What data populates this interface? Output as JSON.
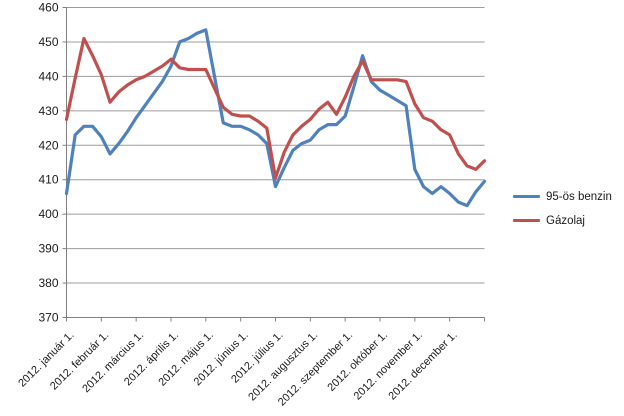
{
  "chart_data": {
    "type": "line",
    "categories": [
      "2012. január 1.",
      "2012. február 1.",
      "2012. március 1.",
      "2012. április 1.",
      "2012. május 1.",
      "2012. június 1.",
      "2012. július 1.",
      "2012. augusztus 1.",
      "2012. szeptember 1.",
      "2012. október 1.",
      "2012. november 1.",
      "2012. december 1."
    ],
    "label_every_n_points": 4,
    "series": [
      {
        "name": "95-ös benzin",
        "color": "#4F81BD",
        "values": [
          406,
          423,
          425.5,
          425.5,
          422.5,
          417.5,
          420.5,
          424,
          428,
          431.5,
          435,
          438.5,
          443,
          450,
          451,
          452.5,
          453.5,
          440,
          426.5,
          425.5,
          425.5,
          424.5,
          423,
          420.5,
          408,
          413.5,
          418.5,
          420.5,
          421.5,
          424.5,
          426,
          426,
          428.5,
          437,
          446,
          438.5,
          436,
          434.5,
          433,
          431.5,
          413,
          408,
          406,
          408,
          406,
          403.5,
          402.5,
          406.5,
          409.5
        ]
      },
      {
        "name": "Gázolaj",
        "color": "#C0504D",
        "values": [
          427.5,
          439.5,
          451,
          446,
          440.5,
          432.5,
          435.5,
          437.5,
          439,
          440,
          441.5,
          443,
          445,
          442.5,
          442,
          442,
          442,
          436.5,
          431,
          429,
          428.5,
          428.5,
          427,
          425,
          410.5,
          418,
          423,
          425.5,
          427.5,
          430.5,
          432.5,
          429,
          434,
          440,
          444.5,
          439,
          439,
          439,
          439,
          438.5,
          432,
          428,
          427,
          424.5,
          423,
          417.5,
          414,
          413,
          415.5
        ]
      }
    ],
    "ylim": [
      370,
      460
    ],
    "yticks": [
      370,
      380,
      390,
      400,
      410,
      420,
      430,
      440,
      450,
      460
    ],
    "grid": "horizontal",
    "legend_position": "right",
    "colors": {
      "gridline": "#9C9C9C",
      "axis": "#808080",
      "text": "#1a1a1a",
      "background": "#ffffff"
    }
  }
}
